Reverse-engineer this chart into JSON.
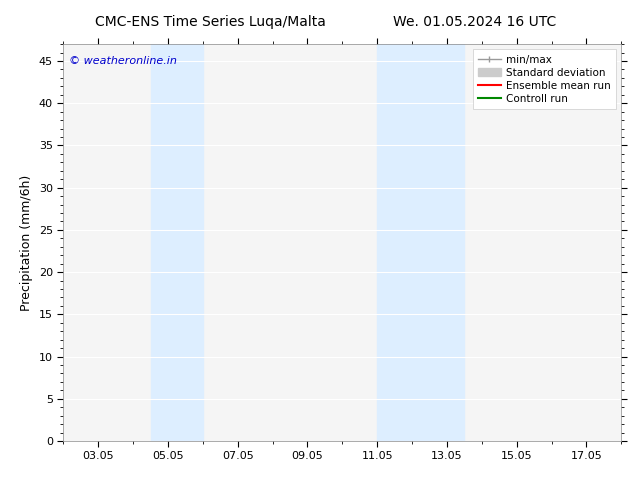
{
  "title_left": "CMC-ENS Time Series Luqa/Malta",
  "title_right": "We. 01.05.2024 16 UTC",
  "ylabel": "Precipitation (mm/6h)",
  "xlim": [
    2.0,
    18.0
  ],
  "ylim": [
    0,
    47
  ],
  "yticks": [
    0,
    5,
    10,
    15,
    20,
    25,
    30,
    35,
    40,
    45
  ],
  "xtick_labels": [
    "03.05",
    "05.05",
    "07.05",
    "09.05",
    "11.05",
    "13.05",
    "15.05",
    "17.05"
  ],
  "xtick_positions": [
    3,
    5,
    7,
    9,
    11,
    13,
    15,
    17
  ],
  "shaded_regions": [
    {
      "xmin": 4.5,
      "xmax": 6.0,
      "color": "#ddeeff"
    },
    {
      "xmin": 11.0,
      "xmax": 13.5,
      "color": "#ddeeff"
    }
  ],
  "watermark": "© weatheronline.in",
  "watermark_color": "#0000cc",
  "background_color": "#ffffff",
  "plot_bg_color": "#f5f5f5",
  "grid_color": "#ffffff",
  "legend_labels": [
    "min/max",
    "Standard deviation",
    "Ensemble mean run",
    "Controll run"
  ],
  "legend_colors": [
    "#999999",
    "#cccccc",
    "#ff0000",
    "#008800"
  ],
  "title_fontsize": 10,
  "axis_label_fontsize": 9,
  "tick_fontsize": 8,
  "watermark_fontsize": 8,
  "legend_fontsize": 7.5
}
